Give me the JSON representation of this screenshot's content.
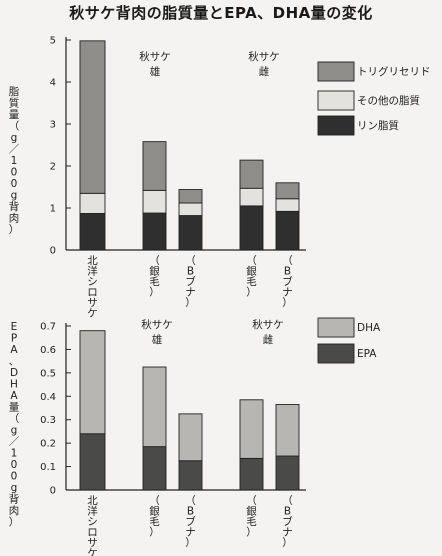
{
  "title": "秋サケ背肉の脂質量とEPA、DHA量の変化",
  "chart_data": [
    {
      "type": "bar",
      "stacked": true,
      "ylabel": "脂質量（g／100g背肉）",
      "ylim": [
        0,
        5
      ],
      "yticks": [
        "0",
        "1",
        "2",
        "3",
        "4",
        "5"
      ],
      "categories": [
        "北洋シロサケ",
        "（銀毛）",
        "（Bブナ）",
        "（銀毛）",
        "（Bブナ）"
      ],
      "groups": [
        {
          "line1": "秋サケ",
          "line2": "雄"
        },
        {
          "line1": "秋サケ",
          "line2": "雌"
        }
      ],
      "series": [
        {
          "name": "リン脂質",
          "values": [
            0.87,
            0.88,
            0.82,
            1.05,
            0.92
          ]
        },
        {
          "name": "その他の脂質",
          "values": [
            0.48,
            0.54,
            0.3,
            0.42,
            0.3
          ]
        },
        {
          "name": "トリグリセリド",
          "values": [
            3.63,
            1.16,
            0.32,
            0.67,
            0.38
          ]
        }
      ],
      "legend_order": [
        "トリグリセリド",
        "その他の脂質",
        "リン脂質"
      ]
    },
    {
      "type": "bar",
      "stacked": true,
      "ylabel": "EPA、DHA量（g／100g背肉）",
      "ylim": [
        0,
        0.7
      ],
      "yticks": [
        "0",
        "0.1",
        "0.2",
        "0.3",
        "0.4",
        "0.5",
        "0.6",
        "0.7"
      ],
      "categories": [
        "北洋シロサケ",
        "（銀毛）",
        "（Bブナ）",
        "（銀毛）",
        "（Bブナ）"
      ],
      "groups": [
        {
          "line1": "秋サケ",
          "line2": "雄"
        },
        {
          "line1": "秋サケ",
          "line2": "雌"
        }
      ],
      "series": [
        {
          "name": "EPA",
          "values": [
            0.24,
            0.185,
            0.125,
            0.135,
            0.145
          ]
        },
        {
          "name": "DHA",
          "values": [
            0.44,
            0.34,
            0.2,
            0.25,
            0.22
          ]
        }
      ],
      "legend_order": [
        "DHA",
        "EPA"
      ]
    }
  ],
  "colors": {
    "リン脂質": "#2f2f2f",
    "その他の脂質": "#e4e2de",
    "トリグリセリド": "#8f8d89",
    "EPA": "#4a4a48",
    "DHA": "#b8b6b2"
  }
}
